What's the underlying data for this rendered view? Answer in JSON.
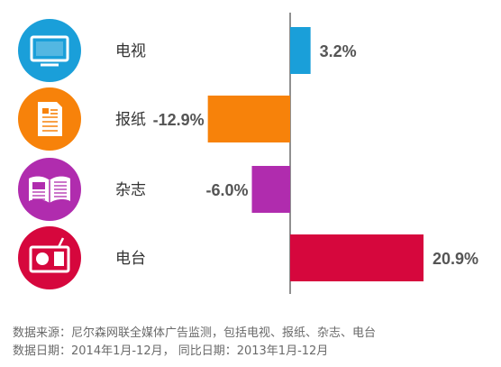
{
  "chart_data": {
    "type": "bar",
    "orientation": "horizontal",
    "categories": [
      "电视",
      "报纸",
      "杂志",
      "电台"
    ],
    "values": [
      3.2,
      -12.9,
      -6.0,
      20.9
    ],
    "value_labels": [
      "3.2%",
      "-12.9%",
      "-6.0%",
      "20.9%"
    ],
    "unit": "%",
    "colors": [
      "#1a9fd9",
      "#f7820a",
      "#b02cae",
      "#d6073d"
    ],
    "icons": [
      "tv-icon",
      "newspaper-icon",
      "magazine-icon",
      "radio-icon"
    ],
    "xlim": [
      -14,
      22
    ],
    "grid": false
  },
  "footer": {
    "source": "数据来源：尼尔森网联全媒体广告监测，包括电视、报纸、杂志、电台",
    "date": "数据日期：2014年1月-12月，  同比日期：2013年1月-12月"
  }
}
